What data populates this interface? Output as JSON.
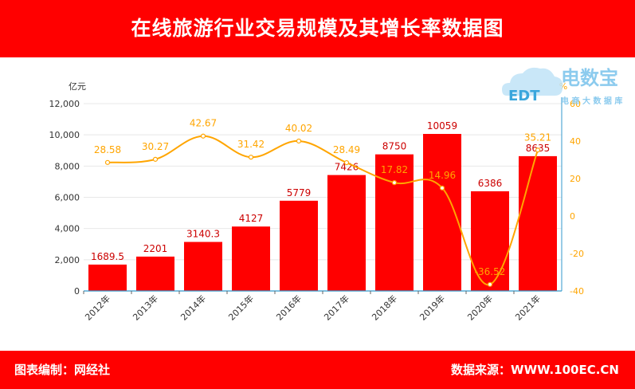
{
  "header": {
    "title": "在线旅游行业交易规模及其增长率数据图"
  },
  "footer": {
    "left": "图表编制：网经社",
    "right": "数据来源：WWW.100EC.CN"
  },
  "logo": {
    "main": "电数宝",
    "sub": "电 商 大 数 据 库",
    "mark": "EDT",
    "icon": "cloud-logo-icon"
  },
  "colors": {
    "bar": "#ff0000",
    "line": "#ffa500",
    "grid": "#e8e8e8",
    "header": "#ff0000",
    "right_axis": "#3399cc"
  },
  "chart_data": {
    "type": "bar",
    "categories": [
      "2012年",
      "2013年",
      "2014年",
      "2015年",
      "2016年",
      "2017年",
      "2018年",
      "2019年",
      "2020年",
      "2021年"
    ],
    "series": [
      {
        "values": [
          1689.5,
          2201,
          3140.3,
          4127,
          5779,
          7426,
          8750,
          10059,
          6386,
          8635
        ],
        "labels": [
          "1689.5",
          "2201",
          "3140.3",
          "4127",
          "5779",
          "7426",
          "8750",
          "10059",
          "6386",
          "8635"
        ],
        "type": "bar",
        "axis": "left"
      },
      {
        "values": [
          28.58,
          30.27,
          42.67,
          31.42,
          40.02,
          28.49,
          17.82,
          14.96,
          -36.52,
          35.21
        ],
        "labels": [
          "28.58",
          "30.27",
          "42.67",
          "31.42",
          "40.02",
          "28.49",
          "17.82",
          "14.96",
          "-36.52",
          "35.21"
        ],
        "type": "line",
        "axis": "right"
      }
    ],
    "y_left": {
      "label": "亿元",
      "ylim": [
        0,
        12000
      ],
      "ticks": [
        "0",
        "2,000",
        "4,000",
        "6,000",
        "8,000",
        "10,000",
        "12,000"
      ]
    },
    "y_right": {
      "label": "%",
      "ylim": [
        -40,
        60
      ],
      "ticks": [
        "-40",
        "-20",
        "0",
        "20",
        "40",
        "60"
      ]
    },
    "grid": true
  }
}
